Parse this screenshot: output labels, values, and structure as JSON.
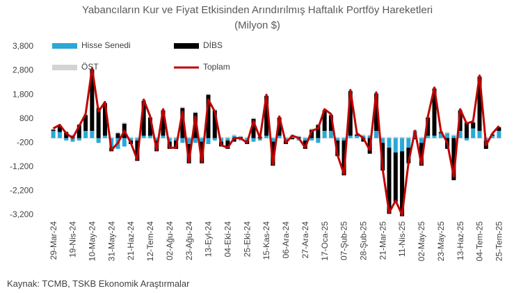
{
  "chart_data": {
    "type": "stacked-bar-line",
    "title": "Yabancıların Kur ve Fiyat Etkisinden Arındırılmış Haftalık Portföy Hareketleri (Milyon $)",
    "source": "Kaynak: TCMB, TSKB Ekonomik Araştırmalar",
    "categories": [
      "29-Mar-24",
      null,
      null,
      "19-Nis-24",
      null,
      null,
      "10-May-24",
      null,
      null,
      "31-May-24",
      null,
      null,
      "21-Haz-24",
      null,
      null,
      "12-Tem-24",
      null,
      null,
      "02-Ağu-24",
      null,
      null,
      "23-Ağu-24",
      null,
      null,
      "13-Eyl-24",
      null,
      null,
      "04-Eki-24",
      null,
      null,
      "25-Eki-24",
      null,
      null,
      "15-Kas-24",
      null,
      null,
      "06-Ara-24",
      null,
      null,
      "27-Ara-24",
      null,
      null,
      "17-Oca-25",
      null,
      null,
      "07-Şub-25",
      null,
      null,
      "28-Şub-25",
      null,
      null,
      "21-Mar-25",
      null,
      null,
      "11-Nis-25",
      null,
      null,
      "02-May-25",
      null,
      null,
      "23-May-25",
      null,
      null,
      "13-Haz-25",
      null,
      null,
      "04-Tem-25",
      null,
      null,
      "25-Tem-25"
    ],
    "series": [
      {
        "name": "Hisse Senedi",
        "color": "#2aa8d6",
        "kind": "bar",
        "values": [
          300,
          250,
          -100,
          -150,
          -100,
          300,
          300,
          -200,
          100,
          -400,
          -450,
          -350,
          -100,
          -100,
          100,
          100,
          -100,
          100,
          -150,
          -100,
          -200,
          -250,
          -200,
          -150,
          -250,
          -100,
          -150,
          -100,
          100,
          -100,
          -100,
          -150,
          -100,
          100,
          -150,
          100,
          -100,
          100,
          -100,
          -100,
          -100,
          -200,
          300,
          300,
          -100,
          -100,
          100,
          100,
          100,
          100,
          300,
          -200,
          -400,
          -600,
          -550,
          -400,
          300,
          -200,
          100,
          100,
          200,
          200,
          100,
          300,
          -100,
          400,
          300,
          -100,
          100,
          300
        ]
      },
      {
        "name": "DİBS",
        "color": "#000000",
        "kind": "bar",
        "values": [
          50,
          250,
          250,
          100,
          550,
          650,
          2550,
          1250,
          1350,
          -150,
          200,
          600,
          -150,
          -850,
          1450,
          750,
          -450,
          1050,
          -300,
          -350,
          1250,
          -800,
          1050,
          -900,
          1800,
          1150,
          -200,
          -350,
          -150,
          50,
          -150,
          800,
          50,
          1650,
          -1000,
          750,
          -150,
          -50,
          50,
          -350,
          350,
          550,
          850,
          650,
          -650,
          -1450,
          1850,
          50,
          -150,
          -650,
          1550,
          -1150,
          -2750,
          -2050,
          -2700,
          -650,
          -50,
          -950,
          750,
          1950,
          50,
          -450,
          -1750,
          850,
          650,
          250,
          2250,
          -350,
          50,
          150
        ]
      },
      {
        "name": "ÖST",
        "color": "#d3d3d3",
        "kind": "bar",
        "values": [
          50,
          50,
          50,
          50,
          50,
          50,
          50,
          50,
          50,
          50,
          50,
          50,
          50,
          50,
          50,
          50,
          50,
          50,
          50,
          50,
          50,
          50,
          50,
          50,
          50,
          50,
          50,
          50,
          50,
          50,
          50,
          50,
          50,
          50,
          50,
          50,
          50,
          50,
          50,
          50,
          50,
          50,
          50,
          50,
          50,
          50,
          50,
          50,
          50,
          50,
          50,
          50,
          50,
          50,
          50,
          50,
          50,
          50,
          50,
          50,
          50,
          50,
          50,
          50,
          50,
          50,
          50,
          50,
          50,
          50
        ]
      },
      {
        "name": "Toplam",
        "color": "#c00000",
        "kind": "line",
        "values": [
          400,
          550,
          200,
          0,
          500,
          1000,
          2900,
          1100,
          1500,
          -500,
          -200,
          300,
          -200,
          -900,
          1600,
          900,
          -500,
          1200,
          -400,
          -400,
          1100,
          -1000,
          900,
          -1000,
          1600,
          1100,
          -300,
          -400,
          0,
          0,
          -200,
          700,
          0,
          1800,
          -1100,
          900,
          -200,
          100,
          0,
          -400,
          300,
          400,
          1200,
          1000,
          -700,
          -1500,
          2000,
          200,
          0,
          -500,
          1900,
          -1300,
          -3100,
          -2600,
          -3200,
          -1000,
          300,
          -1100,
          900,
          2100,
          300,
          -200,
          -1600,
          1200,
          600,
          700,
          2600,
          -300,
          200,
          500
        ]
      }
    ],
    "ylim": [
      -3200,
      3800
    ],
    "yticks": [
      {
        "value": 3800,
        "label": "3,800"
      },
      {
        "value": 2800,
        "label": "2,800"
      },
      {
        "value": 1800,
        "label": "1,800"
      },
      800,
      -200,
      {
        "value": -1200,
        "label": "-1,200"
      },
      {
        "value": -2200,
        "label": "-2,200"
      },
      {
        "value": -3200,
        "label": "-3,200"
      }
    ],
    "grid": false
  }
}
